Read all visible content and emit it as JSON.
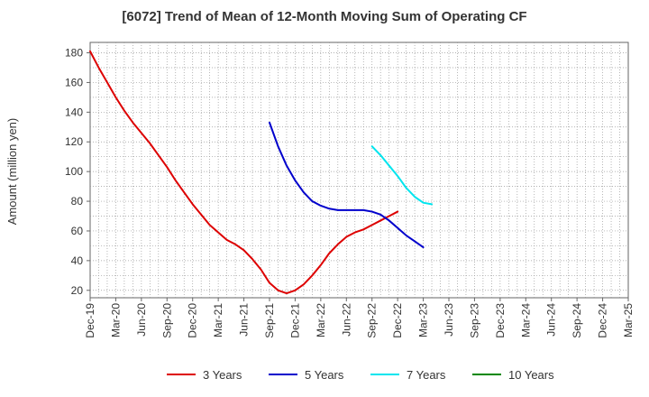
{
  "chart_data": {
    "type": "line",
    "title": "[6072]  Trend of Mean of 12-Month Moving Sum of Operating CF",
    "xlabel": "",
    "ylabel": "Amount (million yen)",
    "ylim": [
      15,
      187
    ],
    "yticks": [
      20,
      40,
      60,
      80,
      100,
      120,
      140,
      160,
      180
    ],
    "grid": true,
    "legend_position": "bottom",
    "x_tick_labels": [
      "Dec-19",
      "Mar-20",
      "Jun-20",
      "Sep-20",
      "Dec-20",
      "Mar-21",
      "Jun-21",
      "Sep-21",
      "Dec-21",
      "Mar-22",
      "Jun-22",
      "Sep-22",
      "Dec-22",
      "Mar-23",
      "Jun-23",
      "Sep-23",
      "Dec-23",
      "Mar-24",
      "Jun-24",
      "Sep-24",
      "Dec-24",
      "Mar-25"
    ],
    "series": [
      {
        "name": "3 Years",
        "color": "#dd0000",
        "start_index": 0,
        "values": [
          181,
          170,
          160,
          150,
          141,
          133,
          126,
          119,
          111,
          103,
          94,
          86,
          78,
          71,
          64,
          59,
          54,
          51,
          47,
          41,
          34,
          25,
          20,
          18,
          20,
          24,
          30,
          37,
          45,
          51,
          56,
          59,
          61,
          64,
          67,
          70,
          73
        ]
      },
      {
        "name": "5 Years",
        "color": "#0000cc",
        "start_index": 21,
        "values": [
          133,
          117,
          104,
          94,
          86,
          80,
          77,
          75,
          74,
          74,
          74,
          74,
          73,
          71,
          67,
          62,
          57,
          53,
          49
        ]
      },
      {
        "name": "7 Years",
        "color": "#00e5ee",
        "start_index": 33,
        "values": [
          117,
          111,
          104,
          97,
          89,
          83,
          79,
          78
        ]
      },
      {
        "name": "10 Years",
        "color": "#008800",
        "start_index": 0,
        "values": []
      }
    ]
  }
}
